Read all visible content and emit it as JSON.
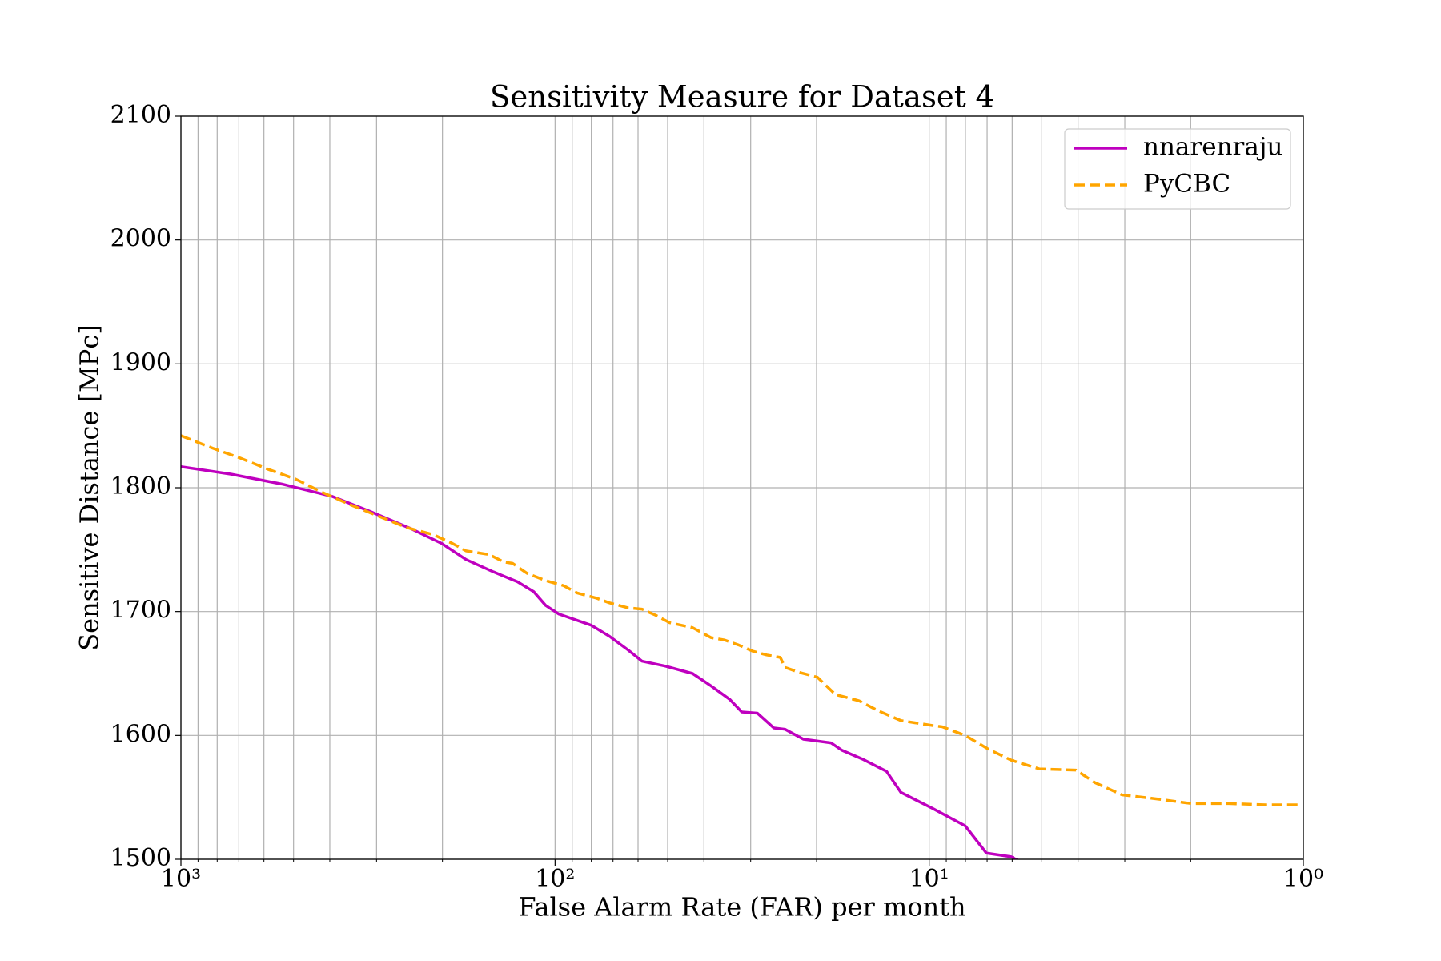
{
  "chart_data": {
    "type": "line",
    "title": "Sensitivity Measure for Dataset 4",
    "xlabel": "False Alarm Rate (FAR) per month",
    "ylabel": "Sensitive Distance [MPc]",
    "xscale": "log",
    "xreversed": true,
    "xlim": [
      1000,
      1
    ],
    "ylim": [
      1500,
      2100
    ],
    "xticks": [
      {
        "value": 1000,
        "label": "10³"
      },
      {
        "value": 100,
        "label": "10²"
      },
      {
        "value": 10,
        "label": "10¹"
      },
      {
        "value": 1,
        "label": "10⁰"
      }
    ],
    "xminorticks": [
      900,
      800,
      700,
      600,
      500,
      400,
      300,
      200,
      90,
      80,
      70,
      60,
      50,
      40,
      30,
      20,
      9,
      8,
      7,
      6,
      5,
      4,
      3,
      2
    ],
    "yticks": [
      1500,
      1600,
      1700,
      1800,
      1900,
      2000,
      2100
    ],
    "grid": true,
    "legend": "upper right",
    "series": [
      {
        "name": "nnarenraju",
        "color": "#bf00bf",
        "style": "solid",
        "x": [
          1000,
          736,
          538,
          394,
          313,
          243,
          201,
          173,
          146,
          126,
          114,
          106,
          97.7,
          80.1,
          71.5,
          63.8,
          58.6,
          50.8,
          42.9,
          38.3,
          34.1,
          31.7,
          28.8,
          26.0,
          24.3,
          21.7,
          18.3,
          17.1,
          15.1,
          13.0,
          11.9,
          9.78,
          8.01,
          7.03,
          6.03,
          5.79
        ],
        "values": [
          1817,
          1811,
          1803,
          1793,
          1781,
          1767,
          1755,
          1742,
          1732,
          1724,
          1716,
          1705,
          1698,
          1689,
          1680,
          1669,
          1660,
          1656,
          1650,
          1640,
          1629,
          1619,
          1618,
          1606,
          1605,
          1597,
          1594,
          1588,
          1581,
          1571,
          1554,
          1541,
          1527,
          1505,
          1502,
          1499
        ]
      },
      {
        "name": "PyCBC",
        "color": "#ffa500",
        "style": "dashed",
        "x": [
          1000,
          824,
          695,
          586,
          494,
          417,
          351,
          296,
          250,
          211,
          188,
          173,
          150,
          137,
          130,
          119,
          106,
          95.0,
          87.3,
          77.8,
          71.5,
          63.8,
          58.6,
          53.8,
          49.4,
          42.9,
          38.3,
          35.2,
          32.3,
          29.6,
          27.2,
          25.0,
          24.3,
          22.3,
          19.9,
          17.8,
          15.4,
          13.7,
          11.9,
          9.78,
          9.23,
          8.01,
          6.95,
          6.03,
          5.08,
          4.05,
          3.61,
          3.05,
          2.5,
          1.99,
          1.58,
          1.26,
          1.02
        ],
        "values": [
          1842,
          1832,
          1824,
          1815,
          1807,
          1796,
          1786,
          1777,
          1768,
          1762,
          1755,
          1749,
          1746,
          1740,
          1739,
          1731,
          1725,
          1721,
          1715,
          1711,
          1707,
          1703,
          1702,
          1697,
          1691,
          1687,
          1679,
          1677,
          1673,
          1668,
          1665,
          1663,
          1655,
          1651,
          1647,
          1633,
          1628,
          1620,
          1612,
          1608,
          1607,
          1600,
          1589,
          1580,
          1573,
          1572,
          1562,
          1552,
          1549,
          1545,
          1545,
          1544,
          1544
        ]
      }
    ]
  }
}
